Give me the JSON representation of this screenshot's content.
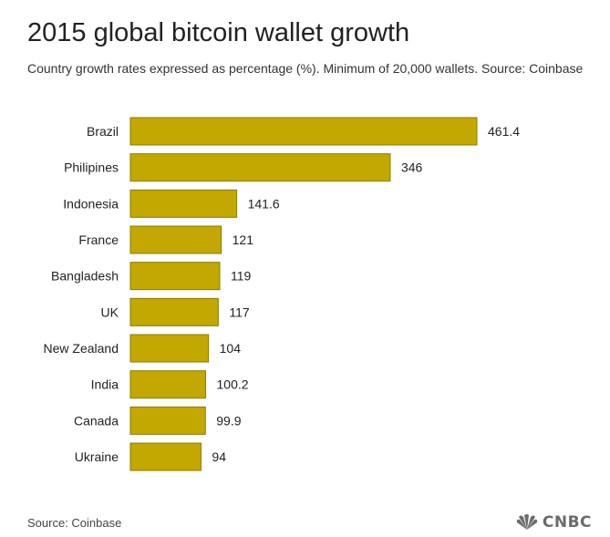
{
  "header": {
    "title": "2015 global bitcoin wallet growth",
    "subtitle": "Country growth rates expressed as percentage (%). Minimum of 20,000 wallets. Source: Coinbase"
  },
  "footer": {
    "source": "Source: Coinbase",
    "logo_text": "CNBC",
    "logo_icon": "peacock-icon",
    "logo_color": "#6b6b6b"
  },
  "chart_data": {
    "type": "bar",
    "orientation": "horizontal",
    "title": "2015 global bitcoin wallet growth",
    "subtitle": "Country growth rates expressed as percentage (%). Minimum of 20,000 wallets. Source: Coinbase",
    "xlabel": "",
    "ylabel": "",
    "categories": [
      "Brazil",
      "Philipines",
      "Indonesia",
      "France",
      "Bangladesh",
      "UK",
      "New Zealand",
      "India",
      "Canada",
      "Ukraine"
    ],
    "values": [
      461.4,
      346,
      141.6,
      121,
      119,
      117,
      104,
      100.2,
      99.9,
      94
    ],
    "value_labels": [
      "461.4",
      "346",
      "141.6",
      "121",
      "119",
      "117",
      "104",
      "100.2",
      "99.9",
      "94"
    ],
    "xlim": [
      0,
      461.4
    ],
    "grid": false,
    "legend": "none",
    "bar_color": "#c2a800",
    "bar_border_color": "#8c7a00"
  }
}
